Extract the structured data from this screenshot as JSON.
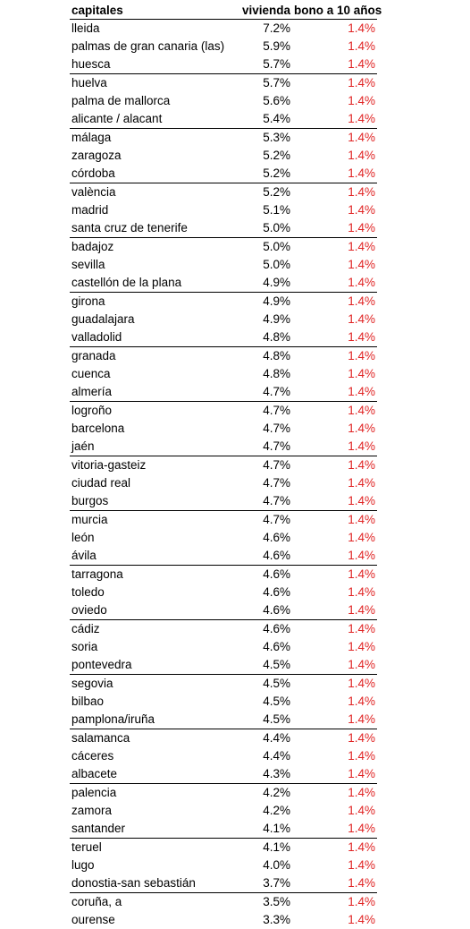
{
  "colors": {
    "text": "#000000",
    "bono": "#e02424",
    "rule": "#000000"
  },
  "headers": {
    "city": "capitales",
    "vivienda": "vivienda",
    "bono": "bono a 10 años"
  },
  "rows": [
    {
      "city": "lleida",
      "vivienda": "7.2%",
      "bono": "1.4%"
    },
    {
      "city": "palmas de gran canaria (las)",
      "vivienda": "5.9%",
      "bono": "1.4%"
    },
    {
      "city": "huesca",
      "vivienda": "5.7%",
      "bono": "1.4%"
    },
    {
      "city": "huelva",
      "vivienda": "5.7%",
      "bono": "1.4%"
    },
    {
      "city": "palma de mallorca",
      "vivienda": "5.6%",
      "bono": "1.4%"
    },
    {
      "city": "alicante / alacant",
      "vivienda": "5.4%",
      "bono": "1.4%"
    },
    {
      "city": "málaga",
      "vivienda": "5.3%",
      "bono": "1.4%"
    },
    {
      "city": "zaragoza",
      "vivienda": "5.2%",
      "bono": "1.4%"
    },
    {
      "city": "córdoba",
      "vivienda": "5.2%",
      "bono": "1.4%"
    },
    {
      "city": "valència",
      "vivienda": "5.2%",
      "bono": "1.4%"
    },
    {
      "city": "madrid",
      "vivienda": "5.1%",
      "bono": "1.4%"
    },
    {
      "city": "santa cruz de tenerife",
      "vivienda": "5.0%",
      "bono": "1.4%"
    },
    {
      "city": "badajoz",
      "vivienda": "5.0%",
      "bono": "1.4%"
    },
    {
      "city": "sevilla",
      "vivienda": "5.0%",
      "bono": "1.4%"
    },
    {
      "city": "castellón de la plana",
      "vivienda": "4.9%",
      "bono": "1.4%"
    },
    {
      "city": "girona",
      "vivienda": "4.9%",
      "bono": "1.4%"
    },
    {
      "city": "guadalajara",
      "vivienda": "4.9%",
      "bono": "1.4%"
    },
    {
      "city": "valladolid",
      "vivienda": "4.8%",
      "bono": "1.4%"
    },
    {
      "city": "granada",
      "vivienda": "4.8%",
      "bono": "1.4%"
    },
    {
      "city": "cuenca",
      "vivienda": "4.8%",
      "bono": "1.4%"
    },
    {
      "city": "almería",
      "vivienda": "4.7%",
      "bono": "1.4%"
    },
    {
      "city": "logroño",
      "vivienda": "4.7%",
      "bono": "1.4%"
    },
    {
      "city": "barcelona",
      "vivienda": "4.7%",
      "bono": "1.4%"
    },
    {
      "city": "jaén",
      "vivienda": "4.7%",
      "bono": "1.4%"
    },
    {
      "city": "vitoria-gasteiz",
      "vivienda": "4.7%",
      "bono": "1.4%"
    },
    {
      "city": "ciudad real",
      "vivienda": "4.7%",
      "bono": "1.4%"
    },
    {
      "city": "burgos",
      "vivienda": "4.7%",
      "bono": "1.4%"
    },
    {
      "city": "murcia",
      "vivienda": "4.7%",
      "bono": "1.4%"
    },
    {
      "city": "león",
      "vivienda": "4.6%",
      "bono": "1.4%"
    },
    {
      "city": "ávila",
      "vivienda": "4.6%",
      "bono": "1.4%"
    },
    {
      "city": "tarragona",
      "vivienda": "4.6%",
      "bono": "1.4%"
    },
    {
      "city": "toledo",
      "vivienda": "4.6%",
      "bono": "1.4%"
    },
    {
      "city": "oviedo",
      "vivienda": "4.6%",
      "bono": "1.4%"
    },
    {
      "city": "cádiz",
      "vivienda": "4.6%",
      "bono": "1.4%"
    },
    {
      "city": "soria",
      "vivienda": "4.6%",
      "bono": "1.4%"
    },
    {
      "city": "pontevedra",
      "vivienda": "4.5%",
      "bono": "1.4%"
    },
    {
      "city": "segovia",
      "vivienda": "4.5%",
      "bono": "1.4%"
    },
    {
      "city": "bilbao",
      "vivienda": "4.5%",
      "bono": "1.4%"
    },
    {
      "city": "pamplona/iruña",
      "vivienda": "4.5%",
      "bono": "1.4%"
    },
    {
      "city": "salamanca",
      "vivienda": "4.4%",
      "bono": "1.4%"
    },
    {
      "city": "cáceres",
      "vivienda": "4.4%",
      "bono": "1.4%"
    },
    {
      "city": "albacete",
      "vivienda": "4.3%",
      "bono": "1.4%"
    },
    {
      "city": "palencia",
      "vivienda": "4.2%",
      "bono": "1.4%"
    },
    {
      "city": "zamora",
      "vivienda": "4.2%",
      "bono": "1.4%"
    },
    {
      "city": "santander",
      "vivienda": "4.1%",
      "bono": "1.4%"
    },
    {
      "city": "teruel",
      "vivienda": "4.1%",
      "bono": "1.4%"
    },
    {
      "city": "lugo",
      "vivienda": "4.0%",
      "bono": "1.4%"
    },
    {
      "city": "donostia-san sebastián",
      "vivienda": "3.7%",
      "bono": "1.4%"
    },
    {
      "city": "coruña, a",
      "vivienda": "3.5%",
      "bono": "1.4%"
    },
    {
      "city": "ourense",
      "vivienda": "3.3%",
      "bono": "1.4%"
    }
  ]
}
